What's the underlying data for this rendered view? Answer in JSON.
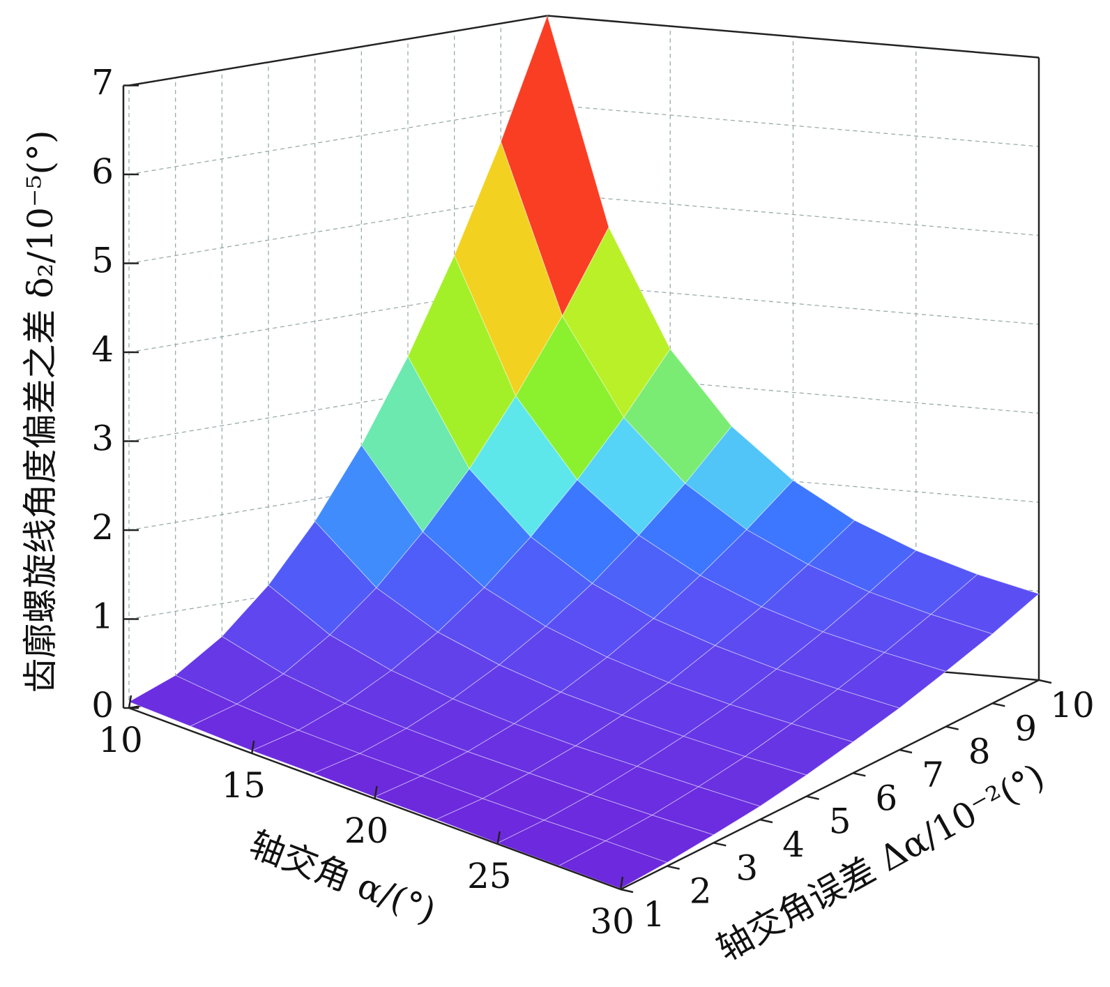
{
  "chart_data": {
    "type": "surface3d",
    "x_label": "轴交角 α/(°)",
    "y_label": "轴交角误差 Δα/10⁻²(°)",
    "z_label": "齿廓螺旋线角度偏差之差 δ₂/10⁻⁵(°)",
    "x": [
      10,
      12.5,
      15,
      17.5,
      20,
      22.5,
      25,
      27.5,
      30
    ],
    "y": [
      1,
      2,
      3,
      4,
      5,
      6,
      7,
      8,
      9,
      10
    ],
    "values": [
      [
        0.07,
        0.05,
        0.03,
        0.03,
        0.02,
        0.02,
        0.01,
        0.01,
        0.01
      ],
      [
        0.28,
        0.19,
        0.13,
        0.1,
        0.08,
        0.06,
        0.05,
        0.05,
        0.04
      ],
      [
        0.63,
        0.42,
        0.3,
        0.23,
        0.18,
        0.15,
        0.12,
        0.1,
        0.09
      ],
      [
        1.12,
        0.75,
        0.54,
        0.41,
        0.32,
        0.26,
        0.22,
        0.18,
        0.15
      ],
      [
        1.75,
        1.17,
        0.84,
        0.64,
        0.5,
        0.41,
        0.34,
        0.28,
        0.24
      ],
      [
        2.52,
        1.69,
        1.21,
        0.92,
        0.72,
        0.58,
        0.48,
        0.41,
        0.35
      ],
      [
        3.43,
        2.29,
        1.65,
        1.25,
        0.98,
        0.8,
        0.66,
        0.56,
        0.47
      ],
      [
        4.48,
        3.0,
        2.16,
        1.64,
        1.29,
        1.04,
        0.86,
        0.73,
        0.62
      ],
      [
        5.67,
        3.79,
        2.73,
        2.07,
        1.63,
        1.32,
        1.09,
        0.92,
        0.78
      ],
      [
        7.0,
        4.68,
        3.37,
        2.56,
        2.01,
        1.62,
        1.34,
        1.13,
        0.97
      ]
    ],
    "xlim": [
      10,
      30
    ],
    "xticks": [
      10,
      15,
      20,
      25,
      30
    ],
    "ylim": [
      1,
      10
    ],
    "yticks": [
      1,
      2,
      3,
      4,
      5,
      6,
      7,
      8,
      9,
      10
    ],
    "zlim": [
      0,
      7
    ],
    "zticks": [
      0,
      1,
      2,
      3,
      4,
      5,
      6,
      7
    ],
    "grid": true,
    "colormap": "rainbow"
  }
}
